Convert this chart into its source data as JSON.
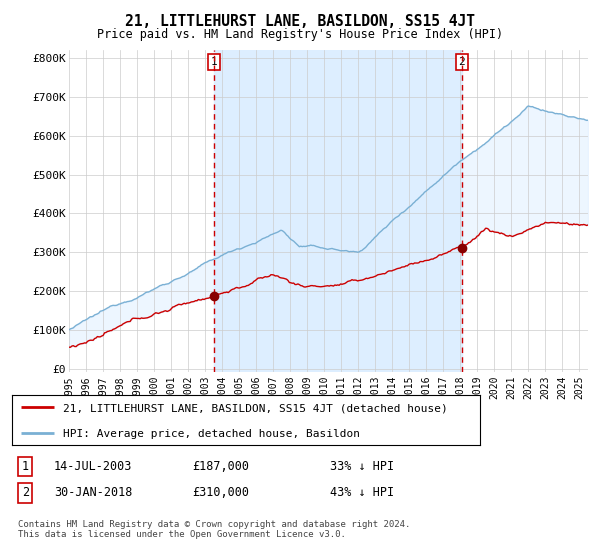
{
  "title": "21, LITTLEHURST LANE, BASILDON, SS15 4JT",
  "subtitle": "Price paid vs. HM Land Registry's House Price Index (HPI)",
  "x_start": 1995.0,
  "x_end": 2025.5,
  "ylim": [
    -10000,
    820000
  ],
  "y_ticks": [
    0,
    100000,
    200000,
    300000,
    400000,
    500000,
    600000,
    700000,
    800000
  ],
  "y_tick_labels": [
    "£0",
    "£100K",
    "£200K",
    "£300K",
    "£400K",
    "£500K",
    "£600K",
    "£700K",
    "£800K"
  ],
  "x_ticks": [
    1995,
    1996,
    1997,
    1998,
    1999,
    2000,
    2001,
    2002,
    2003,
    2004,
    2005,
    2006,
    2007,
    2008,
    2009,
    2010,
    2011,
    2012,
    2013,
    2014,
    2015,
    2016,
    2017,
    2018,
    2019,
    2020,
    2021,
    2022,
    2023,
    2024,
    2025
  ],
  "sale1_x": 2003.54,
  "sale1_y": 187000,
  "sale1_label": "1",
  "sale2_x": 2018.08,
  "sale2_y": 310000,
  "sale2_label": "2",
  "line_color_property": "#cc0000",
  "line_color_hpi": "#7ab0d4",
  "shade_color": "#ddeeff",
  "vline_color": "#cc0000",
  "legend_label_property": "21, LITTLEHURST LANE, BASILDON, SS15 4JT (detached house)",
  "legend_label_hpi": "HPI: Average price, detached house, Basildon",
  "transaction1_date": "14-JUL-2003",
  "transaction1_price": "£187,000",
  "transaction1_pct": "33% ↓ HPI",
  "transaction2_date": "30-JAN-2018",
  "transaction2_price": "£310,000",
  "transaction2_pct": "43% ↓ HPI",
  "footer": "Contains HM Land Registry data © Crown copyright and database right 2024.\nThis data is licensed under the Open Government Licence v3.0.",
  "background_color": "#ffffff",
  "grid_color": "#cccccc"
}
